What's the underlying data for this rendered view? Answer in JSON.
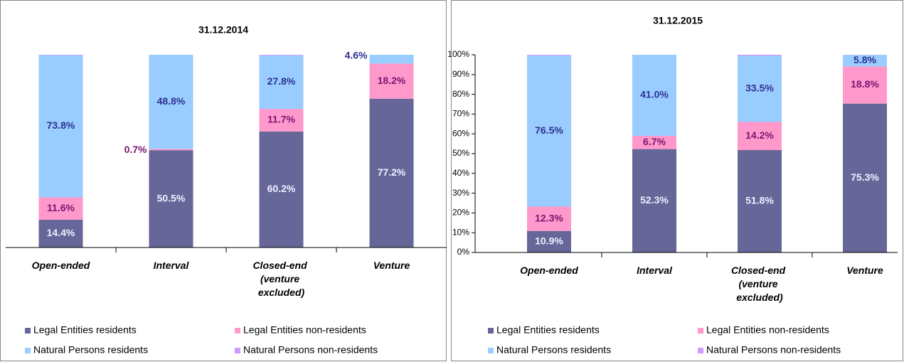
{
  "chart_data": [
    {
      "type": "bar",
      "stacked": true,
      "title": "31.12.2014",
      "categories": [
        "Open-ended",
        "Interval",
        "Closed-end (venture excluded)",
        "Venture"
      ],
      "ylim": [
        0,
        100
      ],
      "series": [
        {
          "name": "Legal Entities residents",
          "color": "#666699",
          "values": [
            14.4,
            50.5,
            60.2,
            77.2
          ],
          "value_labels": [
            "14.4%",
            "50.5%",
            "60.2%",
            "77.2%"
          ]
        },
        {
          "name": "Legal Entities non-residents",
          "color": "#ff99cc",
          "values": [
            11.6,
            0.7,
            11.7,
            18.2
          ],
          "value_labels": [
            "11.6%",
            "0.7%",
            "11.7%",
            "18.2%"
          ]
        },
        {
          "name": "Natural Persons residents",
          "color": "#99ccff",
          "values": [
            73.8,
            48.8,
            27.8,
            4.6
          ],
          "value_labels": [
            "73.8%",
            "48.8%",
            "27.8%",
            "4.6%"
          ]
        },
        {
          "name": "Natural Persons non-residents",
          "color": "#cc99ff",
          "values": [
            0.2,
            0,
            0.3,
            0
          ]
        }
      ]
    },
    {
      "type": "bar",
      "stacked": true,
      "title": "31.12.2015",
      "categories": [
        "Open-ended",
        "Interval",
        "Closed-end (venture excluded)",
        "Venture"
      ],
      "ylim": [
        0,
        100
      ],
      "yticks": [
        {
          "value": 0,
          "label": "0%"
        },
        {
          "value": 10,
          "label": "10%"
        },
        {
          "value": 20,
          "label": "20%"
        },
        {
          "value": 30,
          "label": "30%"
        },
        {
          "value": 40,
          "label": "40%"
        },
        {
          "value": 50,
          "label": "50%"
        },
        {
          "value": 60,
          "label": "60%"
        },
        {
          "value": 70,
          "label": "70%"
        },
        {
          "value": 80,
          "label": "80%"
        },
        {
          "value": 90,
          "label": "90%"
        },
        {
          "value": 100,
          "label": "100%"
        }
      ],
      "series": [
        {
          "name": "Legal Entities residents",
          "color": "#666699",
          "values": [
            10.9,
            52.3,
            51.8,
            75.3
          ],
          "value_labels": [
            "10.9%",
            "52.3%",
            "51.8%",
            "75.3%"
          ]
        },
        {
          "name": "Legal Entities non-residents",
          "color": "#ff99cc",
          "values": [
            12.3,
            6.7,
            14.2,
            18.8
          ],
          "value_labels": [
            "12.3%",
            "6.7%",
            "14.2%",
            "18.8%"
          ]
        },
        {
          "name": "Natural Persons residents",
          "color": "#99ccff",
          "values": [
            76.5,
            41,
            33.5,
            5.8
          ],
          "value_labels": [
            "76.5%",
            "41.0%",
            "33.5%",
            "5.8%"
          ]
        },
        {
          "name": "Natural Persons non-residents",
          "color": "#cc99ff",
          "values": [
            0.3,
            0,
            0.5,
            0.1
          ]
        }
      ]
    }
  ]
}
